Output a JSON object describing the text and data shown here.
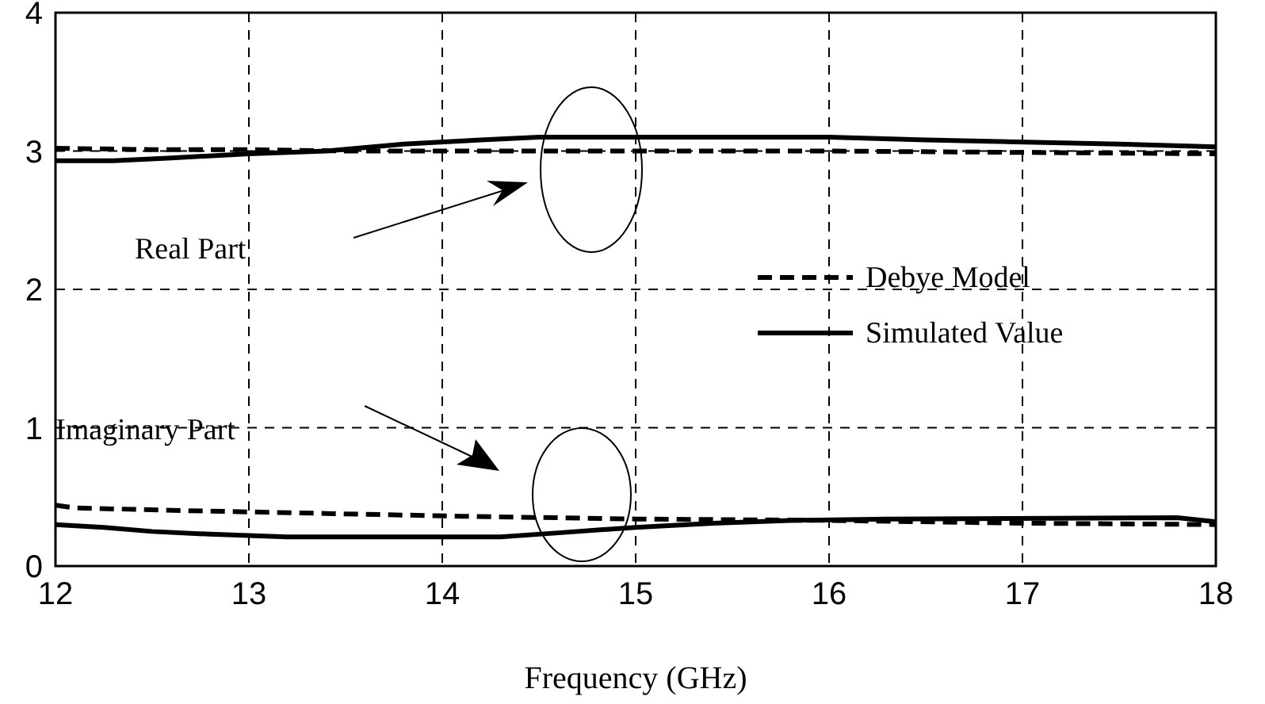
{
  "chart_data": {
    "type": "line",
    "xlabel": "Frequency (GHz)",
    "xlim": [
      12,
      18
    ],
    "xticks": [
      12,
      13,
      14,
      15,
      16,
      17,
      18
    ],
    "ylim": [
      0,
      4
    ],
    "yticks": [
      0,
      1,
      2,
      3,
      4
    ],
    "grid": true,
    "legend": "right",
    "series": [
      {
        "name": "Debye Model",
        "color": "#000000",
        "line_style": "dashed",
        "x": [
          12,
          12.5,
          13,
          13.5,
          14,
          15,
          16,
          17,
          18
        ],
        "values": [
          3.02,
          3.01,
          3.01,
          3.0,
          3.0,
          3.0,
          3.0,
          2.99,
          2.98
        ]
      },
      {
        "name": "Simulated Value",
        "color": "#000000",
        "line_style": "solid",
        "x": [
          12,
          12.3,
          12.6,
          13,
          13.4,
          13.8,
          14.2,
          14.5,
          15,
          16,
          16.5,
          17.5,
          18
        ],
        "values": [
          2.93,
          2.93,
          2.95,
          2.98,
          3.0,
          3.05,
          3.08,
          3.1,
          3.1,
          3.1,
          3.08,
          3.05,
          3.03
        ]
      },
      {
        "color": "#000000",
        "line_style": "dashed",
        "x": [
          12,
          12.1,
          12.7,
          13.4,
          14.1,
          15,
          16,
          17,
          18
        ],
        "values": [
          0.44,
          0.42,
          0.4,
          0.38,
          0.36,
          0.34,
          0.33,
          0.31,
          0.3
        ]
      },
      {
        "color": "#000000",
        "line_style": "solid",
        "x": [
          12,
          12.25,
          12.5,
          12.8,
          13.2,
          14.3,
          14.6,
          15,
          15.4,
          15.8,
          16.3,
          17.8,
          18
        ],
        "values": [
          0.3,
          0.28,
          0.25,
          0.23,
          0.21,
          0.21,
          0.24,
          0.28,
          0.31,
          0.33,
          0.34,
          0.35,
          0.32
        ]
      }
    ],
    "annotations": [
      "Real Part",
      "Imaginary Part"
    ]
  }
}
